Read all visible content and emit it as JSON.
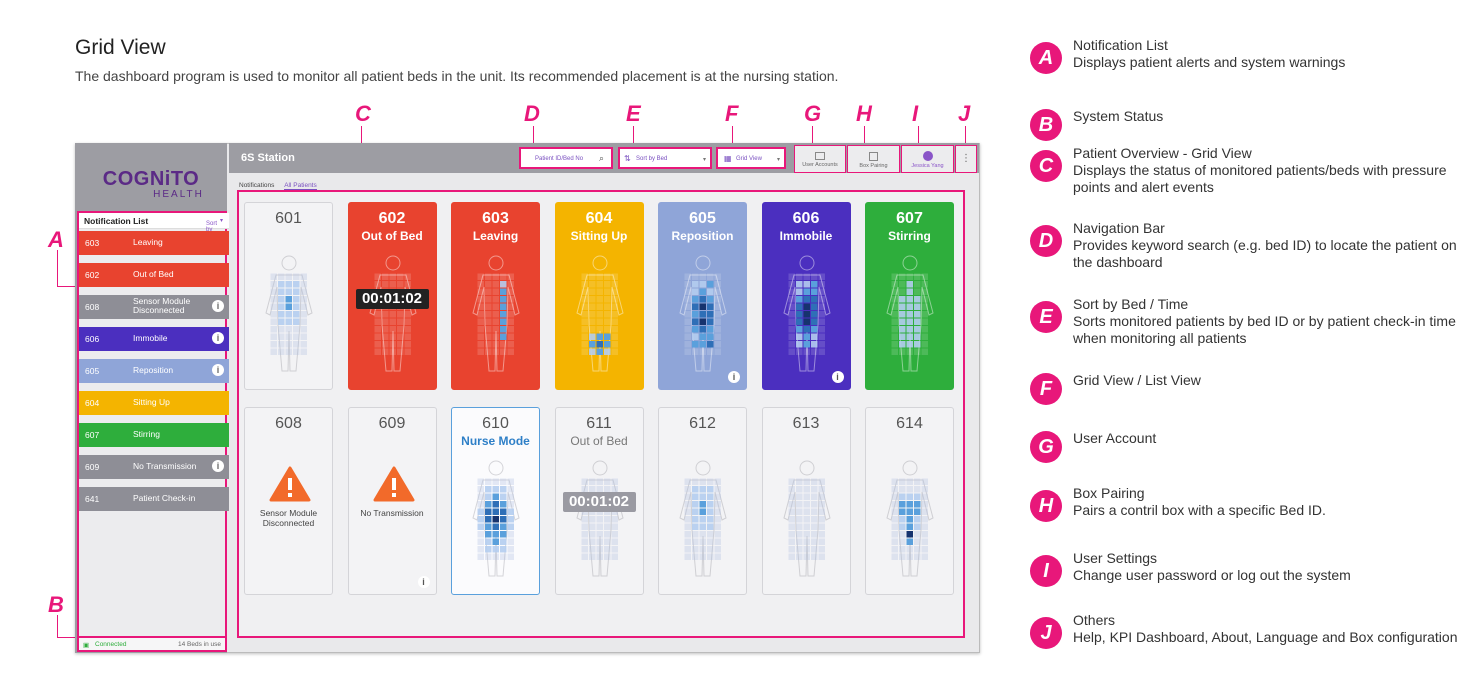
{
  "header": {
    "title": "Grid View",
    "description": "The dashboard program is used to monitor all patient beds in the unit. Its recommended placement is at the nursing station."
  },
  "callouts": [
    "A",
    "B",
    "C",
    "D",
    "E",
    "F",
    "G",
    "H",
    "I",
    "J"
  ],
  "colors": {
    "accent": "#e8177a",
    "leaving": "#e8432f",
    "sitting_up": "#f4b400",
    "reposition": "#8fa5d8",
    "immobile": "#4b2fbf",
    "stirring": "#2eae3c",
    "gray": "#8e8e96"
  },
  "app": {
    "logo_main": "COGNiTO",
    "logo_sub": "HEALTH",
    "station": "6S Station",
    "search_placeholder": "Patient ID/Bed No",
    "sort_label": "Sort by Bed",
    "view_label": "Grid View",
    "user_accounts": "User Accounts",
    "box_pairing": "Box Pairing",
    "user_name": "Jessica Yang",
    "tab_notifications": "Notifications",
    "tab_all_patients": "All Patients"
  },
  "notifications": {
    "title": "Notification List",
    "sort_label": "Sort by",
    "items": [
      {
        "bed": "603",
        "label": "Leaving",
        "color": "#e8432f",
        "info": false
      },
      {
        "bed": "602",
        "label": "Out of Bed",
        "color": "#e8432f",
        "info": false
      },
      {
        "bed": "608",
        "label": "Sensor Module Disconnected",
        "color": "#8e8e96",
        "info": true
      },
      {
        "bed": "606",
        "label": "Immobile",
        "color": "#4b2fbf",
        "info": true
      },
      {
        "bed": "605",
        "label": "Reposition",
        "color": "#8fa5d8",
        "info": true
      },
      {
        "bed": "604",
        "label": "Sitting Up",
        "color": "#f4b400",
        "info": false
      },
      {
        "bed": "607",
        "label": "Stirring",
        "color": "#2eae3c",
        "info": false
      },
      {
        "bed": "609",
        "label": "No Transmission",
        "color": "#8e8e96",
        "info": true
      },
      {
        "bed": "641",
        "label": "Patient Check-in",
        "color": "#8e8e96",
        "info": false
      }
    ]
  },
  "status": {
    "connection": "Connected",
    "beds": "14 Beds in use"
  },
  "beds": [
    {
      "bed": "601",
      "status": ""
    },
    {
      "bed": "602",
      "status": "Out of Bed",
      "timer": "00:01:02"
    },
    {
      "bed": "603",
      "status": "Leaving"
    },
    {
      "bed": "604",
      "status": "Sitting Up"
    },
    {
      "bed": "605",
      "status": "Reposition"
    },
    {
      "bed": "606",
      "status": "Immobile"
    },
    {
      "bed": "607",
      "status": "Stirring"
    },
    {
      "bed": "608",
      "status": "",
      "warning": "Sensor Module Disconnected"
    },
    {
      "bed": "609",
      "status": "",
      "warning": "No Transmission"
    },
    {
      "bed": "610",
      "status": "Nurse Mode"
    },
    {
      "bed": "611",
      "status": "Out of Bed",
      "timer": "00:01:02"
    },
    {
      "bed": "612",
      "status": ""
    },
    {
      "bed": "613",
      "status": ""
    },
    {
      "bed": "614",
      "status": ""
    }
  ],
  "legend": [
    {
      "letter": "A",
      "title": "Notification List",
      "desc": "Displays patient alerts and system warnings"
    },
    {
      "letter": "B",
      "title": "System Status",
      "desc": ""
    },
    {
      "letter": "C",
      "title": "Patient Overview - Grid View",
      "desc": "Displays the status of monitored patients/beds with pressure points and alert events"
    },
    {
      "letter": "D",
      "title": "Navigation Bar",
      "desc": "Provides keyword search (e.g. bed ID) to locate the patient on the dashboard"
    },
    {
      "letter": "E",
      "title": "Sort by Bed / Time",
      "desc": "Sorts monitored patients by bed ID or by patient check-in time when monitoring all patients"
    },
    {
      "letter": "F",
      "title": "Grid View / List View",
      "desc": ""
    },
    {
      "letter": "G",
      "title": "User Account",
      "desc": ""
    },
    {
      "letter": "H",
      "title": "Box Pairing",
      "desc": "Pairs a contril box with a specific Bed ID."
    },
    {
      "letter": "I",
      "title": "User Settings",
      "desc": "Change user password or log out the system"
    },
    {
      "letter": "J",
      "title": "Others",
      "desc": "Help, KPI Dashboard, About, Language and Box configuration"
    }
  ]
}
